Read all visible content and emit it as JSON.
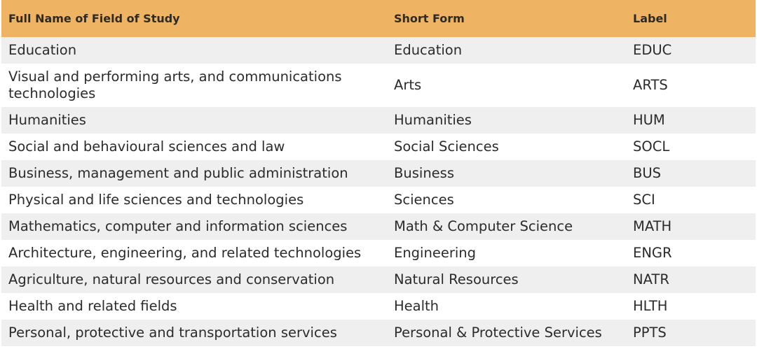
{
  "table": {
    "columns": [
      "Full Name of Field of Study",
      "Short Form",
      "Label"
    ],
    "rows": [
      [
        "Education",
        "Education",
        "EDUC"
      ],
      [
        "Visual and performing arts, and communications technologies",
        "Arts",
        "ARTS"
      ],
      [
        "Humanities",
        "Humanities",
        "HUM"
      ],
      [
        "Social and behavioural sciences and law",
        "Social Sciences",
        "SOCL"
      ],
      [
        "Business, management and public administration",
        "Business",
        "BUS"
      ],
      [
        "Physical and life sciences and technologies",
        "Sciences",
        "SCI"
      ],
      [
        "Mathematics, computer and information sciences",
        "Math & Computer Science",
        "MATH"
      ],
      [
        "Architecture, engineering, and related technologies",
        "Engineering",
        "ENGR"
      ],
      [
        "Agriculture, natural resources and conservation",
        "Natural Resources",
        "NATR"
      ],
      [
        "Health and related fields",
        "Health",
        "HLTH"
      ],
      [
        "Personal, protective and transportation services",
        "Personal & Protective Services",
        "PPTS"
      ]
    ]
  },
  "colors": {
    "header_bg": "#eeb464",
    "stripe_bg": "#efefef"
  }
}
